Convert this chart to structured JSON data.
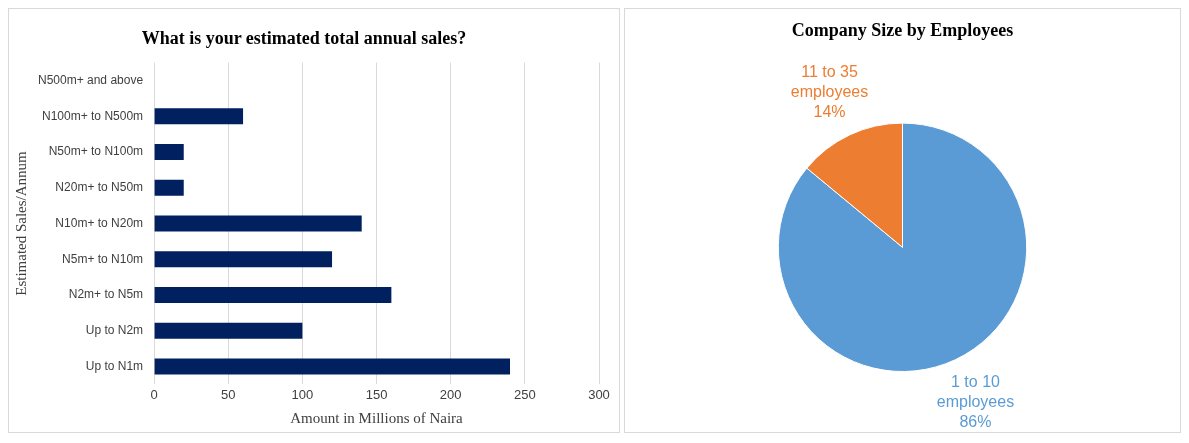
{
  "chart_data": [
    {
      "type": "bar",
      "orientation": "horizontal",
      "title": "What is your estimated total annual sales?",
      "xlabel": "Amount in Millions of Naira",
      "ylabel": "Estimated Sales/Annum",
      "categories": [
        "N500m+ and above",
        "N100m+ to N500m",
        "N50m+ to N100m",
        "N20m+ to N50m",
        "N10m+ to N20m",
        "N5m+ to N10m",
        "N2m+ to N5m",
        "Up to N2m",
        "Up to N1m"
      ],
      "values": [
        0,
        60,
        20,
        20,
        140,
        120,
        160,
        100,
        240
      ],
      "color": "#002060",
      "xlim": [
        0,
        300
      ],
      "xticks": [
        0,
        50,
        100,
        150,
        200,
        250,
        300
      ],
      "grid": "x",
      "legend": false
    },
    {
      "type": "pie",
      "title": "Company Size by Employees",
      "categories": [
        "1 to 10 employees",
        "11 to 35 employees"
      ],
      "values": [
        86,
        14
      ],
      "colors": [
        "#5b9bd5",
        "#ed7d31"
      ],
      "value_labels": [
        "86%",
        "14%"
      ],
      "legend": false
    }
  ]
}
